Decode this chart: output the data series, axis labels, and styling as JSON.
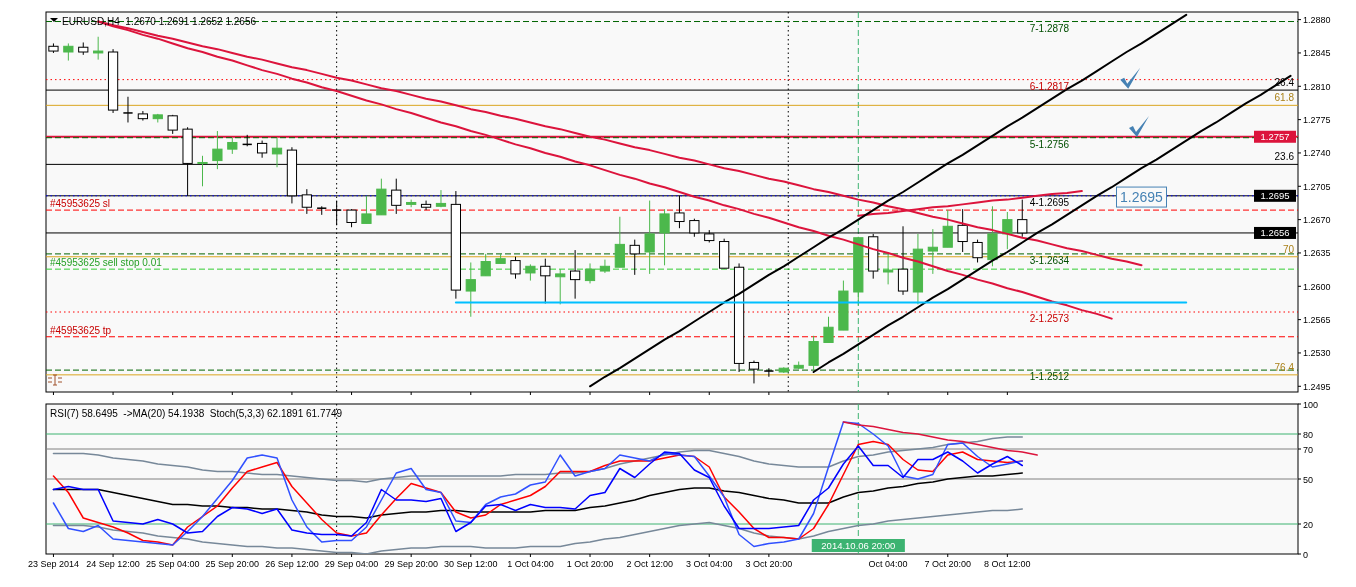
{
  "chart_data": [
    {
      "type": "candlestick",
      "title": "EURUSD,H4  1.2670 1.2691 1.2652 1.2656",
      "colors": [
        "#ffffff",
        "#4cb84c",
        "#ffffff",
        "#4cb84c",
        "#ffffff",
        "#000000",
        "#ffffff",
        "#4cb84c",
        "#ffffff",
        "#ffffff",
        "#4cb84c",
        "#4cb84c",
        "#4cb84c",
        "#000000",
        "#ffffff",
        "#4cb84c",
        "#ffffff",
        "#ffffff",
        "#000000",
        "#000000",
        "#ffffff",
        "#4cb84c",
        "#4cb84c",
        "#ffffff",
        "#4cb84c",
        "#ffffff",
        "#4cb84c",
        "#ffffff",
        "#4cb84c",
        "#4cb84c",
        "#4cb84c",
        "#ffffff",
        "#4cb84c",
        "#ffffff",
        "#4cb84c",
        "#ffffff",
        "#4cb84c",
        "#4cb84c",
        "#4cb84c",
        "#ffffff",
        "#4cb84c",
        "#4cb84c",
        "#ffffff",
        "#ffffff",
        "#ffffff",
        "#ffffff",
        "#ffffff",
        "#ffffff",
        "#000000",
        "#4cb84c",
        "#4cb84c",
        "#4cb84c",
        "#4cb84c",
        "#4cb84c",
        "#4cb84c",
        "#ffffff",
        "#4cb84c",
        "#ffffff",
        "#4cb84c",
        "#4cb84c",
        "#4cb84c",
        "#ffffff",
        "#ffffff",
        "#4cb84c",
        "#4cb84c",
        "#ffffff",
        null,
        null,
        null,
        null,
        null,
        null,
        null,
        null,
        null,
        null,
        null,
        null,
        null,
        null,
        null,
        null,
        null,
        null
      ],
      "categories": [
        "23 Sep 2014",
        null,
        null,
        null,
        "24 Sep 12:00",
        null,
        null,
        null,
        "25 Sep 04:00",
        null,
        null,
        null,
        "25 Sep 20:00",
        null,
        null,
        null,
        "26 Sep 12:00",
        null,
        null,
        null,
        "29 Sep 04:00",
        null,
        null,
        null,
        "29 Sep 20:00",
        null,
        null,
        null,
        "30 Sep 12:00",
        null,
        null,
        null,
        "1 Oct 04:00",
        null,
        null,
        null,
        "1 Oct 20:00",
        null,
        null,
        null,
        "2 Oct 12:00",
        null,
        null,
        null,
        "3 Oct 04:00",
        null,
        null,
        null,
        "3 Oct 20:00",
        null,
        null,
        null,
        null,
        null,
        null,
        null,
        "Oct 04:00",
        null,
        null,
        null,
        "7 Oct 20:00",
        null,
        null,
        null,
        "8 Oct 12:00",
        null,
        null,
        null,
        null,
        null,
        null,
        null,
        null,
        null,
        null,
        null,
        null,
        null,
        null,
        null,
        null,
        null,
        null,
        null
      ],
      "ohlc": [
        [
          1.2852,
          1.2855,
          1.2845,
          1.2847
        ],
        [
          1.2846,
          1.2855,
          1.2837,
          1.2852
        ],
        [
          1.2851,
          1.2856,
          1.2843,
          1.2846
        ],
        [
          1.2845,
          1.2862,
          1.2838,
          1.2847
        ],
        [
          1.2846,
          1.2849,
          1.2782,
          1.2785
        ],
        [
          1.2782,
          1.2799,
          1.2772,
          1.2782
        ],
        [
          1.2781,
          1.2784,
          1.2774,
          1.2776
        ],
        [
          1.2776,
          1.2781,
          1.2772,
          1.278
        ],
        [
          1.2779,
          1.278,
          1.276,
          1.2764
        ],
        [
          1.2765,
          1.2767,
          1.2695,
          1.2729
        ],
        [
          1.2729,
          1.2737,
          1.2705,
          1.273
        ],
        [
          1.2732,
          1.2763,
          1.2723,
          1.2744
        ],
        [
          1.2744,
          1.2756,
          1.2739,
          1.2751
        ],
        [
          1.2749,
          1.2759,
          1.2747,
          1.2749
        ],
        [
          1.275,
          1.2753,
          1.2735,
          1.274
        ],
        [
          1.2739,
          1.2756,
          1.2725,
          1.2745
        ],
        [
          1.2743,
          1.2746,
          1.2687,
          1.2695
        ],
        [
          1.2696,
          1.2702,
          1.2676,
          1.2683
        ],
        [
          1.2682,
          1.2684,
          1.2675,
          1.2682
        ],
        [
          1.268,
          1.269,
          1.2664,
          1.268
        ],
        [
          1.268,
          1.2681,
          1.2662,
          1.2667
        ],
        [
          1.2666,
          1.2695,
          1.2666,
          1.2676
        ],
        [
          1.2675,
          1.2713,
          1.2675,
          1.2702
        ],
        [
          1.2701,
          1.2713,
          1.2676,
          1.2685
        ],
        [
          1.2686,
          1.2691,
          1.2683,
          1.2688
        ],
        [
          1.2686,
          1.269,
          1.268,
          1.2683
        ],
        [
          1.2684,
          1.2701,
          1.2683,
          1.2687
        ],
        [
          1.2686,
          1.27,
          1.2587,
          1.2596
        ],
        [
          1.2595,
          1.2625,
          1.2568,
          1.2607
        ],
        [
          1.2611,
          1.2634,
          1.2611,
          1.2626
        ],
        [
          1.2624,
          1.2634,
          1.2624,
          1.2629
        ],
        [
          1.2627,
          1.2631,
          1.2608,
          1.2613
        ],
        [
          1.2614,
          1.2623,
          1.2606,
          1.2621
        ],
        [
          1.2621,
          1.2629,
          1.2582,
          1.2611
        ],
        [
          1.261,
          1.2618,
          1.2581,
          1.2613
        ],
        [
          1.2616,
          1.2638,
          1.2587,
          1.2607
        ],
        [
          1.2606,
          1.2624,
          1.2603,
          1.2618
        ],
        [
          1.2616,
          1.2628,
          1.2614,
          1.2621
        ],
        [
          1.262,
          1.2673,
          1.262,
          1.2644
        ],
        [
          1.2643,
          1.2649,
          1.2612,
          1.2634
        ],
        [
          1.2636,
          1.269,
          1.2613,
          1.2655
        ],
        [
          1.2656,
          1.2681,
          1.2622,
          1.2676
        ],
        [
          1.2677,
          1.2695,
          1.2661,
          1.2668
        ],
        [
          1.2669,
          1.2671,
          1.2652,
          1.2656
        ],
        [
          1.2655,
          1.2659,
          1.2646,
          1.2648
        ],
        [
          1.2647,
          1.265,
          1.2619,
          1.2619
        ],
        [
          1.262,
          1.2624,
          1.251,
          1.2519
        ],
        [
          1.252,
          1.2522,
          1.2498,
          1.2513
        ],
        [
          1.2511,
          1.2514,
          1.2505,
          1.2511
        ],
        [
          1.251,
          1.2515,
          1.2509,
          1.2514
        ],
        [
          1.2514,
          1.2521,
          1.2513,
          1.2517
        ],
        [
          1.2517,
          1.2548,
          1.2512,
          1.2542
        ],
        [
          1.2541,
          1.2568,
          1.2541,
          1.2557
        ],
        [
          1.2554,
          1.2606,
          1.2554,
          1.2595
        ],
        [
          1.2594,
          1.2652,
          1.258,
          1.2651
        ],
        [
          1.2652,
          1.2655,
          1.2608,
          1.2616
        ],
        [
          1.2615,
          1.2634,
          1.2602,
          1.2617
        ],
        [
          1.2618,
          1.2663,
          1.2591,
          1.2595
        ],
        [
          1.2594,
          1.2655,
          1.2581,
          1.2639
        ],
        [
          1.2637,
          1.266,
          1.2613,
          1.2641
        ],
        [
          1.2641,
          1.268,
          1.2641,
          1.2663
        ],
        [
          1.2664,
          1.2681,
          1.2636,
          1.2647
        ],
        [
          1.2646,
          1.2649,
          1.2625,
          1.263
        ],
        [
          1.2628,
          1.2684,
          1.2621,
          1.2655
        ],
        [
          1.2655,
          1.2678,
          1.2639,
          1.267
        ],
        [
          1.267,
          1.2691,
          1.2652,
          1.2656
        ],
        null,
        null,
        null,
        null,
        null,
        null,
        null,
        null,
        null,
        null,
        null,
        null,
        null,
        null,
        null,
        null,
        null,
        null
      ],
      "ylim": [
        1.2489,
        1.2888
      ],
      "yticks": [
        {
          "value": 1.288,
          "label": "1.2880"
        },
        1.2845,
        {
          "value": 1.281,
          "label": "1.2810"
        },
        1.2775,
        {
          "value": 1.274,
          "label": "1.2740"
        },
        1.2705,
        {
          "value": 1.267,
          "label": "1.2670"
        },
        1.2635,
        {
          "value": 1.26,
          "label": "1.2600"
        },
        1.2565,
        {
          "value": 1.253,
          "label": "1.2530"
        },
        1.2495
      ],
      "tick_labels": "y",
      "ref_lines": [
        {
          "axis": "y",
          "value": 1.2878,
          "color": "#006400",
          "line_style": "dashed"
        },
        {
          "axis": "y",
          "value": 1.2817,
          "color": "#ff0000",
          "line_style": "dotted"
        },
        {
          "axis": "y",
          "value": 1.2806,
          "color": "#000000",
          "line_style": "solid"
        },
        {
          "axis": "y",
          "value": 1.279,
          "color": "#daa520",
          "line_style": "solid"
        },
        {
          "axis": "y",
          "value": 1.2757,
          "label": "1.2757",
          "color": "#dc143c",
          "line_style": "solid"
        },
        {
          "axis": "y",
          "value": 1.2756,
          "color": "#006400",
          "line_style": "dashed"
        },
        {
          "axis": "y",
          "value": 1.2728,
          "color": "#000000",
          "line_style": "solid"
        },
        {
          "axis": "y",
          "value": 1.2695,
          "label": "1.2695",
          "color": "#000000",
          "line_style": "solid"
        },
        {
          "axis": "y",
          "value": 1.2695,
          "color": "#0000ff",
          "line_style": "dotted"
        },
        {
          "axis": "y",
          "value": 1.268,
          "color": "#ff0000",
          "line_style": "dashed"
        },
        {
          "axis": "y",
          "value": 1.2656,
          "label": "1.2656",
          "color": "#000000",
          "line_style": "solid"
        },
        {
          "axis": "y",
          "value": 1.2634,
          "color": "#006400",
          "line_style": "dashed"
        },
        {
          "axis": "y",
          "value": 1.2631,
          "color": "#daa520",
          "line_style": "solid"
        },
        {
          "axis": "y",
          "value": 1.2618,
          "color": "#32cd32",
          "line_style": "dashed"
        },
        {
          "axis": "y",
          "value": 1.2573,
          "color": "#ff0000",
          "line_style": "dotted"
        },
        {
          "axis": "y",
          "value": 1.2547,
          "color": "#ff0000",
          "line_style": "dashed"
        },
        {
          "axis": "y",
          "value": 1.2512,
          "color": "#006400",
          "line_style": "dashed"
        },
        {
          "axis": "y",
          "value": 1.2507,
          "color": "#daa520",
          "line_style": "solid"
        }
      ],
      "annotations": [
        {
          "text": "7-1.2878",
          "x": "8 Oct 12:00",
          "y": 1.2878
        },
        {
          "text": "6-1.2817",
          "x": "8 Oct 12:00",
          "y": 1.2817
        },
        {
          "text": "5-1.2756",
          "x": "8 Oct 12:00",
          "y": 1.2756
        },
        {
          "text": "4-1.2695",
          "x": "8 Oct 12:00",
          "y": 1.2695
        },
        {
          "text": "3-1.2634",
          "x": "8 Oct 12:00",
          "y": 1.2634
        },
        {
          "text": "2-1.2573",
          "x": "8 Oct 12:00",
          "y": 1.2573
        },
        {
          "text": "1-1.2512",
          "x": "8 Oct 12:00",
          "y": 1.2512
        },
        {
          "text": "#45953625 sl",
          "x": "23 Sep 2014",
          "y": 1.268
        },
        {
          "text": "#45953625 sell stop 0.01",
          "x": "23 Sep 2014",
          "y": 1.2618
        },
        {
          "text": "#45953625 tp",
          "x": "23 Sep 2014",
          "y": 1.2547
        },
        {
          "text": "26.4",
          "y": 1.2806
        },
        {
          "text": "61.8",
          "y": 1.279
        },
        {
          "text": "23.6",
          "y": 1.2728
        },
        {
          "text": "70",
          "y": 1.2631
        },
        {
          "text": "76.4",
          "y": 1.2507
        },
        "1.2695"
      ],
      "series": [
        {
          "type": "line",
          "color": "#dc143c",
          "values": [
            null,
            null,
            null,
            1.2878,
            1.2874,
            1.2871,
            1.2867,
            1.2863,
            1.286,
            1.2856,
            1.2852,
            1.2849,
            1.2845,
            1.2841,
            1.2838,
            1.2834,
            1.283,
            1.2827,
            1.2823,
            1.2819,
            1.2816,
            1.2812,
            1.2808,
            1.2805,
            1.2801,
            1.2797,
            1.2794,
            1.279,
            1.2786,
            1.2783,
            1.2779,
            1.2776,
            1.2772,
            1.2768,
            1.2765,
            1.2761,
            1.2757,
            1.2754,
            1.275,
            1.2746,
            1.2743,
            1.2739,
            1.2735,
            1.2732,
            1.2728,
            1.2724,
            1.2721,
            1.2717,
            1.2713,
            1.271,
            1.2706,
            1.2702,
            1.2699,
            1.2695,
            1.2691,
            1.2688,
            1.2684,
            1.2681,
            1.2677,
            1.2673,
            1.267,
            1.2666,
            1.2662,
            1.2659,
            1.2655,
            1.2651,
            1.2648,
            1.2644,
            1.264,
            1.2637,
            1.2633,
            1.2629,
            1.2626,
            1.2622,
            null,
            null,
            null,
            null,
            null,
            null,
            null,
            null,
            null,
            null
          ]
        },
        {
          "type": "line",
          "color": "#dc143c",
          "values": [
            null,
            null,
            null,
            1.2878,
            1.2873,
            1.2869,
            1.2864,
            1.286,
            1.2855,
            1.285,
            1.2846,
            1.2841,
            1.2837,
            1.2832,
            1.2827,
            1.2823,
            1.2818,
            1.2814,
            1.2809,
            1.2805,
            1.28,
            1.2795,
            1.2791,
            1.2786,
            1.2782,
            1.2777,
            1.2772,
            1.2768,
            1.2763,
            1.2759,
            1.2754,
            1.2749,
            1.2745,
            1.274,
            1.2736,
            1.2731,
            1.2727,
            1.2722,
            1.2717,
            1.2713,
            1.2708,
            1.2704,
            1.2699,
            1.2694,
            1.269,
            1.2685,
            1.2681,
            1.2676,
            1.2672,
            1.2667,
            1.2662,
            1.2658,
            1.2653,
            1.2649,
            1.2644,
            1.2639,
            1.2635,
            1.263,
            1.2626,
            1.2621,
            1.2616,
            1.2612,
            1.2607,
            1.2603,
            1.2598,
            1.2594,
            1.2589,
            1.2584,
            1.258,
            1.2575,
            1.2571,
            1.2566,
            null,
            null,
            null,
            null,
            null,
            null,
            null,
            null,
            null,
            null,
            null,
            null
          ]
        },
        {
          "type": "line",
          "color": "#dc143c",
          "values": [
            null,
            null,
            null,
            null,
            null,
            null,
            null,
            null,
            null,
            null,
            null,
            null,
            null,
            null,
            null,
            null,
            null,
            null,
            null,
            null,
            null,
            null,
            null,
            null,
            null,
            null,
            null,
            null,
            null,
            null,
            null,
            null,
            null,
            null,
            null,
            null,
            null,
            null,
            null,
            null,
            null,
            null,
            null,
            null,
            null,
            null,
            null,
            null,
            null,
            null,
            null,
            null,
            null,
            null,
            1.2674,
            1.2676,
            1.2677,
            1.2679,
            1.2681,
            1.2683,
            1.2684,
            1.2686,
            1.2688,
            1.269,
            1.2691,
            1.2693,
            1.2695,
            1.2697,
            1.2698,
            1.27,
            null,
            null,
            null,
            null,
            null,
            null,
            null,
            null,
            null,
            null,
            null,
            null,
            null,
            null
          ]
        },
        {
          "type": "line",
          "color": "#000000",
          "values": [
            null,
            null,
            null,
            null,
            null,
            null,
            null,
            null,
            null,
            null,
            null,
            null,
            null,
            null,
            null,
            null,
            null,
            null,
            null,
            null,
            null,
            null,
            null,
            null,
            null,
            null,
            null,
            null,
            null,
            null,
            null,
            null,
            null,
            null,
            null,
            null,
            1.2495,
            1.2505,
            1.2514,
            1.2524,
            1.2534,
            1.2544,
            1.2553,
            1.2563,
            1.2573,
            1.2583,
            1.2592,
            1.2602,
            1.2612,
            1.2621,
            1.2631,
            1.2641,
            1.2651,
            1.266,
            1.267,
            1.268,
            1.269,
            1.2699,
            1.2709,
            1.2719,
            1.2729,
            1.2738,
            1.2748,
            1.2758,
            1.2768,
            1.2777,
            1.2787,
            1.2797,
            1.2807,
            1.2816,
            1.2826,
            1.2836,
            1.2846,
            1.2855,
            1.2865,
            1.2875,
            1.2885,
            null,
            null,
            null,
            null,
            null,
            null,
            null
          ]
        },
        {
          "type": "line",
          "color": "#000000",
          "values": [
            null,
            null,
            null,
            null,
            null,
            null,
            null,
            null,
            null,
            null,
            null,
            null,
            null,
            null,
            null,
            null,
            null,
            null,
            null,
            null,
            null,
            null,
            null,
            null,
            null,
            null,
            null,
            null,
            null,
            null,
            null,
            null,
            null,
            null,
            null,
            null,
            null,
            null,
            null,
            null,
            null,
            null,
            null,
            null,
            null,
            null,
            null,
            null,
            null,
            null,
            null,
            1.251,
            1.252,
            1.2529,
            1.2539,
            1.2549,
            1.2559,
            1.2568,
            1.2578,
            1.2588,
            1.2597,
            1.2607,
            1.2617,
            1.2627,
            1.2636,
            1.2646,
            1.2656,
            1.2665,
            1.2675,
            1.2685,
            1.2695,
            1.2704,
            1.2714,
            1.2724,
            1.2733,
            1.2743,
            1.2753,
            1.2763,
            1.2772,
            1.2782,
            1.2792,
            1.2801,
            1.2811,
            1.2821
          ]
        },
        {
          "type": "line",
          "color": "#00bfff",
          "values": [
            null,
            null,
            null,
            null,
            null,
            null,
            null,
            null,
            null,
            null,
            null,
            null,
            null,
            null,
            null,
            null,
            null,
            null,
            null,
            null,
            null,
            null,
            null,
            null,
            null,
            null,
            null,
            1.2583,
            1.2583,
            1.2583,
            1.2583,
            1.2583,
            1.2583,
            1.2583,
            1.2583,
            1.2583,
            1.2583,
            1.2583,
            1.2583,
            1.2583,
            1.2583,
            1.2583,
            1.2583,
            1.2583,
            1.2583,
            1.2583,
            1.2583,
            1.2583,
            1.2583,
            1.2583,
            1.2583,
            1.2583,
            1.2583,
            1.2583,
            1.2583,
            1.2583,
            1.2583,
            1.2583,
            1.2583,
            1.2583,
            1.2583,
            1.2583,
            1.2583,
            1.2583,
            1.2583,
            1.2583,
            1.2583,
            1.2583,
            1.2583,
            1.2583,
            1.2583,
            1.2583,
            1.2583,
            1.2583,
            1.2583,
            1.2583,
            1.2583,
            null,
            null,
            null,
            null,
            null,
            null,
            null
          ]
        }
      ]
    },
    {
      "type": "line",
      "title": "RSI(7) 58.6495  ->MA(20) 54.1938  Stoch(5,3,3) 62.1891 61.7749",
      "categories": [
        "23 Sep 2014",
        null,
        null,
        null,
        "24 Sep 12:00",
        null,
        null,
        null,
        "25 Sep 04:00",
        null,
        null,
        null,
        "25 Sep 20:00",
        null,
        null,
        null,
        "26 Sep 12:00",
        null,
        null,
        null,
        "29 Sep 04:00",
        null,
        null,
        null,
        "29 Sep 20:00",
        null,
        null,
        null,
        "30 Sep 12:00",
        null,
        null,
        null,
        "1 Oct 04:00",
        null,
        null,
        null,
        "1 Oct 20:00",
        null,
        null,
        null,
        "2 Oct 12:00",
        null,
        null,
        null,
        "3 Oct 04:00",
        null,
        null,
        null,
        "3 Oct 20:00",
        null,
        null,
        null,
        null,
        null,
        null,
        null,
        "Oct 04:00",
        null,
        null,
        null,
        "7 Oct 20:00",
        null,
        null,
        null,
        "8 Oct 12:00",
        null,
        null,
        null,
        null,
        null,
        null,
        null,
        null,
        null,
        null,
        null,
        null,
        null,
        null,
        null,
        null,
        null,
        null,
        null
      ],
      "ylim": [
        0,
        100
      ],
      "yticks": [
        0,
        20,
        50,
        70,
        80,
        100
      ],
      "ref_lines": [
        {
          "axis": "y",
          "value": 80,
          "color": "#3cb371",
          "line_style": "solid"
        },
        {
          "axis": "y",
          "value": 70,
          "color": "#808080",
          "line_style": "solid"
        },
        {
          "axis": "y",
          "value": 50,
          "color": "#808080",
          "line_style": "solid"
        },
        {
          "axis": "y",
          "value": 20,
          "color": "#3cb371",
          "line_style": "solid"
        }
      ],
      "annotations": [
        "2014.10.06 20:00"
      ],
      "series": [
        {
          "type": "line",
          "color": "#778899",
          "values": [
            67,
            67,
            67,
            66,
            64,
            63,
            62,
            60,
            59,
            58,
            56,
            55,
            55,
            54,
            53,
            53,
            52,
            51,
            50,
            49,
            49,
            48,
            50,
            51,
            52,
            52,
            52,
            52,
            52,
            52,
            52,
            53,
            53,
            53,
            54,
            54,
            55,
            57,
            60,
            62,
            64,
            66,
            68,
            69,
            69,
            67,
            65,
            62,
            60,
            59,
            58,
            58,
            58,
            62,
            65,
            66,
            68,
            69,
            70,
            71,
            73,
            74,
            75,
            77,
            78,
            78,
            null,
            null,
            null,
            null,
            null,
            null,
            null,
            null,
            null,
            null,
            null,
            null,
            null,
            null,
            null,
            null,
            null,
            null
          ]
        },
        {
          "type": "line",
          "color": "#778899",
          "values": [
            19,
            19,
            19,
            18,
            16,
            15,
            14,
            12,
            11,
            10,
            8,
            7,
            6,
            5,
            5,
            4,
            4,
            3,
            2,
            1,
            1,
            0,
            2,
            3,
            4,
            4,
            5,
            5,
            5,
            4,
            4,
            4,
            5,
            5,
            5,
            7,
            8,
            10,
            11,
            13,
            15,
            17,
            19,
            20,
            21,
            19,
            17,
            14,
            12,
            11,
            10,
            12,
            15,
            17,
            19,
            20,
            22,
            23,
            24,
            25,
            26,
            27,
            28,
            29,
            29,
            30,
            null,
            null,
            null,
            null,
            null,
            null,
            null,
            null,
            null,
            null,
            null,
            null,
            null,
            null,
            null,
            null,
            null,
            null
          ]
        },
        {
          "type": "line",
          "color": "#000000",
          "values": [
            43,
            43,
            43,
            43,
            41,
            39,
            37,
            35,
            33,
            33,
            32,
            32,
            31,
            31,
            30,
            30,
            29,
            28,
            26,
            25,
            25,
            24,
            26,
            27,
            28,
            28,
            29,
            29,
            28,
            28,
            28,
            28,
            28,
            29,
            29,
            29,
            31,
            32,
            34,
            36,
            39,
            41,
            43,
            44,
            44,
            42,
            41,
            39,
            37,
            36,
            34,
            34,
            34,
            38,
            41,
            42,
            44,
            45,
            47,
            48,
            50,
            51,
            52,
            52,
            53,
            54,
            null,
            null,
            null,
            null,
            null,
            null,
            null,
            null,
            null,
            null,
            null,
            null,
            null,
            null,
            null,
            null,
            null,
            null
          ]
        },
        {
          "type": "line",
          "color": "#ff0000",
          "values": [
            52,
            41,
            24,
            21,
            18,
            14,
            9,
            8,
            6,
            18,
            25,
            32,
            44,
            55,
            58,
            61,
            45,
            34,
            23,
            14,
            12,
            14,
            26,
            37,
            47,
            44,
            41,
            28,
            24,
            26,
            33,
            36,
            39,
            45,
            55,
            55,
            55,
            59,
            62,
            62,
            62,
            64,
            66,
            65,
            58,
            38,
            28,
            17,
            11,
            11,
            10,
            17,
            33,
            53,
            73,
            75,
            73,
            63,
            56,
            55,
            66,
            68,
            63,
            62,
            61,
            62,
            null,
            null,
            null,
            null,
            null,
            null,
            null,
            null,
            null,
            null,
            null,
            null,
            null,
            null,
            null,
            null,
            null,
            null
          ]
        },
        {
          "type": "line",
          "color": "#3050ff",
          "values": [
            34,
            17,
            15,
            19,
            10,
            9,
            8,
            7,
            6,
            15,
            25,
            37,
            49,
            64,
            66,
            64,
            36,
            18,
            8,
            9,
            9,
            18,
            36,
            54,
            57,
            43,
            41,
            22,
            21,
            33,
            38,
            40,
            46,
            48,
            66,
            52,
            55,
            57,
            66,
            64,
            62,
            67,
            66,
            65,
            52,
            38,
            13,
            5,
            7,
            8,
            10,
            27,
            58,
            88,
            87,
            80,
            72,
            52,
            50,
            53,
            73,
            74,
            65,
            58,
            60,
            62,
            null,
            null,
            null,
            null,
            null,
            null,
            null,
            null,
            null,
            null,
            null,
            null,
            null,
            null,
            null,
            null,
            null,
            null
          ]
        },
        {
          "type": "line",
          "color": "#0000ff",
          "values": [
            43,
            45,
            43,
            43,
            22,
            21,
            20,
            23,
            20,
            14,
            15,
            25,
            31,
            30,
            27,
            30,
            16,
            14,
            13,
            13,
            12,
            21,
            43,
            36,
            36,
            35,
            37,
            15,
            21,
            32,
            33,
            29,
            33,
            31,
            31,
            30,
            39,
            41,
            57,
            51,
            60,
            68,
            67,
            56,
            51,
            32,
            17,
            17,
            17,
            18,
            19,
            36,
            44,
            60,
            72,
            59,
            59,
            51,
            63,
            63,
            68,
            62,
            54,
            60,
            65,
            59,
            null,
            null,
            null,
            null,
            null,
            null,
            null,
            null,
            null,
            null,
            null,
            null,
            null,
            null,
            null,
            null,
            null,
            null
          ]
        },
        {
          "type": "line",
          "color": "#dc143c",
          "values": [
            null,
            null,
            null,
            null,
            null,
            null,
            null,
            null,
            null,
            null,
            null,
            null,
            null,
            null,
            null,
            null,
            null,
            null,
            null,
            null,
            null,
            null,
            null,
            null,
            null,
            null,
            null,
            null,
            null,
            null,
            null,
            null,
            null,
            null,
            null,
            null,
            null,
            null,
            null,
            null,
            null,
            null,
            null,
            null,
            null,
            null,
            null,
            null,
            null,
            null,
            null,
            null,
            null,
            88,
            86,
            85,
            83,
            81,
            80,
            78,
            76,
            75,
            73,
            71,
            69,
            68,
            66,
            null,
            null,
            null,
            null,
            null,
            null,
            null,
            null,
            null,
            null,
            null,
            null,
            null,
            null,
            null,
            null,
            null
          ]
        }
      ]
    }
  ]
}
